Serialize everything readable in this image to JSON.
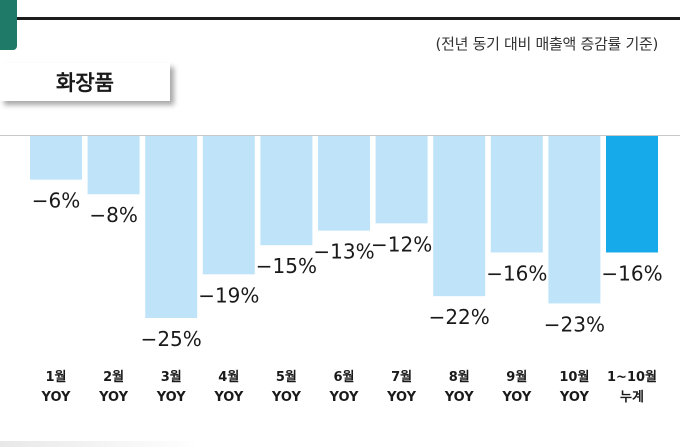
{
  "header": {
    "note": "(전년 동기 대비 매출액 증감률 기준)",
    "category": "화장품"
  },
  "chart_data": {
    "type": "bar",
    "categories": [
      [
        "1월",
        "YOY"
      ],
      [
        "2월",
        "YOY"
      ],
      [
        "3월",
        "YOY"
      ],
      [
        "4월",
        "YOY"
      ],
      [
        "5월",
        "YOY"
      ],
      [
        "6월",
        "YOY"
      ],
      [
        "7월",
        "YOY"
      ],
      [
        "8월",
        "YOY"
      ],
      [
        "9월",
        "YOY"
      ],
      [
        "10월",
        "YOY"
      ],
      [
        "1~10월",
        "누계"
      ]
    ],
    "values": [
      -6,
      -8,
      -25,
      -19,
      -15,
      -13,
      -12,
      -22,
      -16,
      -23,
      -16
    ],
    "value_labels": [
      "−6%",
      "−8%",
      "−25%",
      "−19%",
      "−15%",
      "−13%",
      "−12%",
      "−22%",
      "−16%",
      "−23%",
      "−16%"
    ],
    "ylim": [
      -25,
      0
    ],
    "grid": false,
    "colors": {
      "monthly": "#bfe4fa",
      "cumulative": "#17aaea",
      "label": "#1a1a1a",
      "accent": "#1f7a68"
    }
  }
}
